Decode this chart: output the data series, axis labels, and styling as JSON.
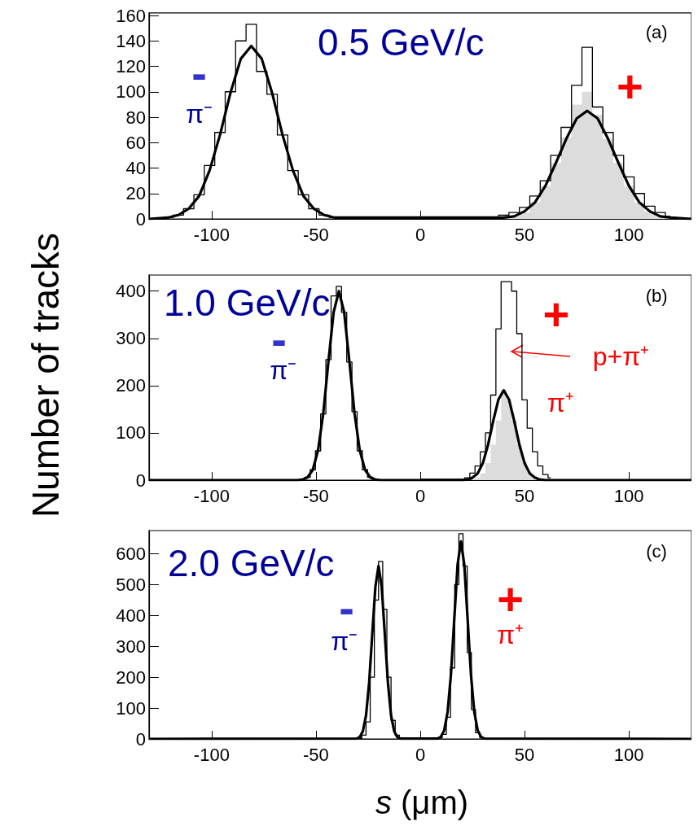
{
  "chart_data": [
    {
      "type": "step",
      "title": "0.5 GeV/c",
      "xlim": [
        -130,
        130
      ],
      "xticks": [
        -100,
        -50,
        0,
        50,
        100
      ],
      "ylim": [
        0,
        162
      ],
      "yticks": [
        0,
        20,
        40,
        60,
        80,
        100,
        120,
        140,
        160
      ],
      "annotations": [
        "(a)",
        "-",
        "π⁻",
        "+"
      ],
      "series": [
        {
          "type": "area",
          "color": "#dcdcdc",
          "x": [
            40,
            45,
            50,
            55,
            60,
            65,
            70,
            75,
            80,
            85,
            90,
            95,
            100,
            105,
            110,
            115,
            120
          ],
          "values": [
            1,
            2,
            5,
            13,
            26,
            44,
            64,
            90,
            100,
            82,
            63,
            44,
            26,
            13,
            6,
            2,
            1
          ]
        },
        {
          "color": "#000000",
          "x": [
            -121,
            -116,
            -111,
            -106,
            -101,
            -96,
            -91,
            -86,
            -81,
            -76,
            -71,
            -66,
            -61,
            -56,
            -51,
            -46,
            -41,
            -36,
            35,
            40,
            45,
            50,
            55,
            60,
            65,
            70,
            75,
            80,
            85,
            90,
            95,
            100,
            105,
            110,
            115,
            120
          ],
          "values": [
            1,
            3,
            8,
            19,
            42,
            68,
            100,
            140,
            153,
            116,
            98,
            66,
            38,
            19,
            8,
            3,
            1,
            0,
            0,
            3,
            5,
            9,
            18,
            30,
            50,
            72,
            105,
            135,
            88,
            68,
            50,
            33,
            20,
            10,
            5,
            2
          ]
        },
        {
          "type": "line",
          "color": "#000000",
          "x": [
            -130,
            -121,
            -116,
            -111,
            -106,
            -101,
            -96,
            -91,
            -86,
            -81,
            -76,
            -71,
            -66,
            -61,
            -56,
            -51,
            -46,
            -41,
            40,
            45,
            50,
            55,
            60,
            65,
            70,
            75,
            80,
            85,
            90,
            95,
            100,
            105,
            110,
            115,
            120,
            130
          ],
          "values": [
            0,
            1,
            3,
            8,
            18,
            38,
            66,
            99,
            126,
            136,
            126,
            99,
            66,
            38,
            18,
            8,
            3,
            1,
            1,
            2,
            6,
            13,
            26,
            44,
            63,
            79,
            85,
            79,
            63,
            44,
            26,
            13,
            6,
            2,
            1,
            0
          ]
        }
      ]
    },
    {
      "type": "step",
      "title": "1.0 GeV/c",
      "ylabel": "Number of tracks",
      "xlim": [
        -130,
        130
      ],
      "xticks": [
        -100,
        -50,
        0,
        50,
        100
      ],
      "ylim": [
        0,
        434
      ],
      "yticks": [
        0,
        100,
        200,
        300,
        400
      ],
      "annotations": [
        "(b)",
        "-",
        "π⁻",
        "+",
        "p+π⁺",
        "π⁺"
      ],
      "series": [
        {
          "type": "area",
          "color": "#dcdcdc",
          "x": [
            25,
            27.5,
            30,
            32.5,
            35,
            37.5,
            40,
            42.5,
            45,
            47.5,
            50,
            52.5,
            55,
            57.5
          ],
          "values": [
            2,
            5,
            14,
            36,
            75,
            126,
            190,
            171,
            126,
            75,
            40,
            18,
            8,
            3
          ]
        },
        {
          "color": "#000000",
          "x": [
            -59,
            -56.5,
            -54,
            -51.5,
            -49,
            -46.5,
            -44,
            -41.5,
            -39,
            -36.5,
            -34,
            -31.5,
            -29,
            -26.5,
            -24,
            -21.5,
            -19,
            20,
            22.5,
            25,
            27.5,
            30,
            32.5,
            35,
            37.5,
            40,
            42.5,
            45,
            47.5,
            50,
            52.5,
            55,
            57.5,
            60,
            62.5
          ],
          "values": [
            0,
            1,
            6,
            22,
            62,
            140,
            255,
            390,
            410,
            355,
            250,
            145,
            62,
            22,
            6,
            1,
            0,
            2,
            5,
            15,
            30,
            60,
            100,
            180,
            320,
            420,
            420,
            400,
            310,
            170,
            110,
            60,
            30,
            12,
            5
          ]
        },
        {
          "type": "line",
          "color": "#000000",
          "x": [
            -130,
            -59,
            -56.5,
            -54,
            -51.5,
            -49,
            -46.5,
            -44,
            -41.5,
            -39,
            -36.5,
            -34,
            -31.5,
            -29,
            -26.5,
            -24,
            -21.5,
            -19,
            20,
            22.5,
            25,
            27.5,
            30,
            32.5,
            35,
            37.5,
            40,
            42.5,
            45,
            47.5,
            50,
            52.5,
            55,
            57.5,
            60,
            130
          ],
          "values": [
            0,
            0,
            1,
            6,
            22,
            63,
            141,
            252,
            356,
            400,
            356,
            252,
            141,
            63,
            22,
            6,
            1,
            0,
            0,
            1,
            5,
            14,
            36,
            75,
            126,
            171,
            190,
            171,
            126,
            75,
            36,
            14,
            5,
            1,
            0,
            0
          ]
        }
      ]
    },
    {
      "type": "step",
      "title": "2.0 GeV/c",
      "xlabel": "s (μm)",
      "xlim": [
        -130,
        130
      ],
      "xticks": [
        -100,
        -50,
        0,
        50,
        100
      ],
      "ylim": [
        0,
        675
      ],
      "yticks": [
        0,
        100,
        200,
        300,
        400,
        500,
        600
      ],
      "annotations": [
        "(c)",
        "-",
        "π⁻",
        "+",
        "π⁺"
      ],
      "series": [
        {
          "color": "#000000",
          "x": [
            -29,
            -27,
            -25,
            -23,
            -21,
            -19,
            -17,
            -15,
            -13,
            -11,
            -9,
            7.5,
            9.5,
            11.5,
            13.5,
            15.5,
            17.5,
            19.5,
            21.5,
            23.5,
            25.5,
            27.5,
            29.5
          ],
          "values": [
            2,
            12,
            55,
            200,
            450,
            575,
            420,
            200,
            60,
            12,
            0,
            0,
            3,
            15,
            70,
            230,
            500,
            665,
            560,
            280,
            95,
            20,
            4
          ]
        },
        {
          "type": "line",
          "color": "#000000",
          "x": [
            -130,
            -30.5,
            -29,
            -27.5,
            -26,
            -24.5,
            -23,
            -21.5,
            -20,
            -18.5,
            -17,
            -15.5,
            -14,
            -12.5,
            -11,
            -9.5,
            8.3,
            9.9,
            11.5,
            13.1,
            14.7,
            16.3,
            17.9,
            19.5,
            21.1,
            22.7,
            24.3,
            25.9,
            27.5,
            29.1,
            30.7,
            130
          ],
          "values": [
            0,
            1,
            6,
            25,
            76,
            182,
            340,
            494,
            560,
            494,
            340,
            182,
            76,
            25,
            6,
            1,
            1,
            7,
            28,
            87,
            208,
            388,
            565,
            640,
            565,
            388,
            208,
            87,
            28,
            7,
            1,
            0
          ]
        }
      ]
    }
  ]
}
